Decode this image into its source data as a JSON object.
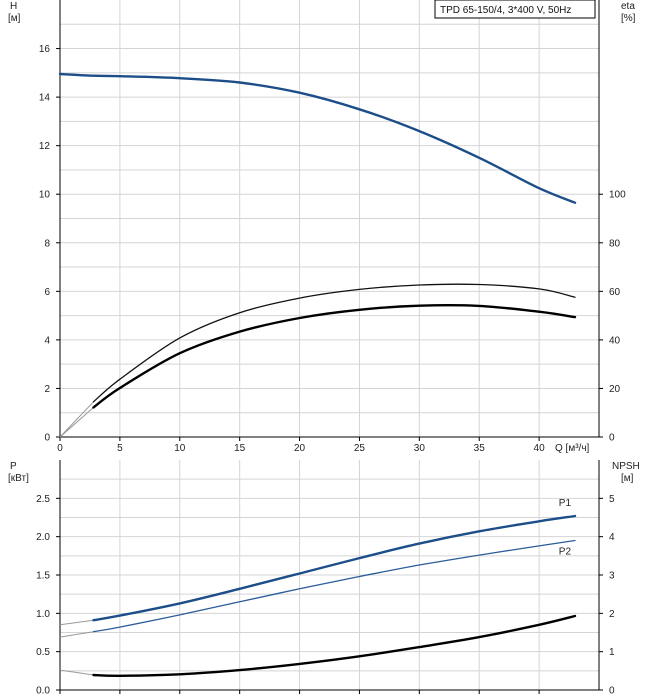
{
  "legend_title": "TPD 65-150/4, 3*400 V, 50Hz",
  "chart_data": [
    {
      "type": "line",
      "panel": "head-efficiency",
      "title": "",
      "xlabel": "Q [м³/ч]",
      "xlim": [
        0,
        45
      ],
      "x_ticks": [
        0,
        5,
        10,
        15,
        20,
        25,
        30,
        35,
        40
      ],
      "y_left": {
        "label_top": "H",
        "label_unit": "[м]",
        "ylim": [
          0,
          18
        ],
        "ticks": [
          0,
          2,
          4,
          6,
          8,
          10,
          12,
          14,
          16
        ]
      },
      "y_right": {
        "label_top": "eta",
        "label_unit": "[%]",
        "ylim": [
          0,
          180
        ],
        "ticks": [
          0,
          20,
          40,
          60,
          80,
          100
        ]
      },
      "grid": true,
      "series": [
        {
          "name": "",
          "axis": "left",
          "color": "#1d4e89",
          "points": [
            [
              0,
              14.95
            ],
            [
              2.8,
              14.88
            ],
            [
              5,
              14.86
            ],
            [
              10,
              14.78
            ],
            [
              15,
              14.6
            ],
            [
              20,
              14.18
            ],
            [
              25,
              13.5
            ],
            [
              30,
              12.6
            ],
            [
              35,
              11.5
            ],
            [
              40,
              10.25
            ],
            [
              43,
              9.65
            ]
          ]
        },
        {
          "name": "",
          "axis": "right",
          "color": "#111111",
          "thin": true,
          "points": [
            [
              2.8,
              14.5
            ],
            [
              5,
              23.8
            ],
            [
              10,
              40.8
            ],
            [
              15,
              51.2
            ],
            [
              20,
              57.2
            ],
            [
              25,
              60.8
            ],
            [
              30,
              62.6
            ],
            [
              35,
              62.8
            ],
            [
              40,
              61.0
            ],
            [
              43,
              57.6
            ]
          ]
        },
        {
          "name": "",
          "axis": "right",
          "color": "#000000",
          "points": [
            [
              2.8,
              12.2
            ],
            [
              5,
              20.2
            ],
            [
              10,
              34.5
            ],
            [
              15,
              43.4
            ],
            [
              20,
              49.0
            ],
            [
              25,
              52.4
            ],
            [
              30,
              54.1
            ],
            [
              35,
              54.0
            ],
            [
              40,
              51.6
            ],
            [
              43,
              49.4
            ]
          ]
        }
      ]
    },
    {
      "type": "line",
      "panel": "power-npsh",
      "title": "",
      "xlim": [
        0,
        45
      ],
      "y_left": {
        "label_top": "P",
        "label_unit": "[кВт]",
        "ylim": [
          0,
          3.0
        ],
        "ticks": [
          "0.0",
          "0.5",
          "1.0",
          "1.5",
          "2.0",
          "2.5"
        ]
      },
      "y_right": {
        "label_top": "NPSH",
        "label_unit": "[м]",
        "ylim": [
          0,
          6
        ],
        "ticks": [
          0,
          1,
          2,
          3,
          4,
          5
        ]
      },
      "grid": true,
      "series": [
        {
          "name": "P1",
          "axis": "left",
          "color": "#1d4e89",
          "points": [
            [
              2.8,
              0.91
            ],
            [
              5,
              0.97
            ],
            [
              10,
              1.13
            ],
            [
              15,
              1.32
            ],
            [
              20,
              1.52
            ],
            [
              25,
              1.72
            ],
            [
              30,
              1.91
            ],
            [
              35,
              2.07
            ],
            [
              40,
              2.2
            ],
            [
              43,
              2.27
            ]
          ]
        },
        {
          "name": "P2",
          "axis": "left",
          "color": "#2b5c99",
          "thin": true,
          "points": [
            [
              2.8,
              0.76
            ],
            [
              5,
              0.82
            ],
            [
              10,
              0.98
            ],
            [
              15,
              1.15
            ],
            [
              20,
              1.32
            ],
            [
              25,
              1.48
            ],
            [
              30,
              1.63
            ],
            [
              35,
              1.76
            ],
            [
              40,
              1.88
            ],
            [
              43,
              1.95
            ]
          ]
        },
        {
          "name": "",
          "axis": "right",
          "color": "#000000",
          "points": [
            [
              2.8,
              0.39
            ],
            [
              5,
              0.37
            ],
            [
              10,
              0.41
            ],
            [
              15,
              0.52
            ],
            [
              20,
              0.68
            ],
            [
              25,
              0.88
            ],
            [
              30,
              1.12
            ],
            [
              35,
              1.38
            ],
            [
              40,
              1.7
            ],
            [
              43,
              1.93
            ]
          ]
        }
      ]
    }
  ]
}
